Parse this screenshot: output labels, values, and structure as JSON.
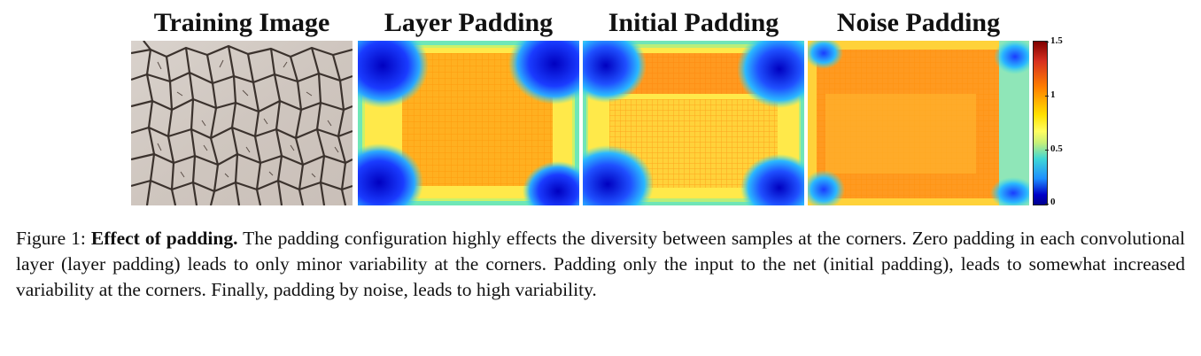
{
  "panels": [
    {
      "title": "Training Image"
    },
    {
      "title": "Layer Padding"
    },
    {
      "title": "Initial Padding"
    },
    {
      "title": "Noise Padding"
    }
  ],
  "colorbar": {
    "ticks": [
      "1.5",
      "1",
      "0.5",
      "0"
    ],
    "colors": [
      "#7f0000",
      "#d7301f",
      "#ff7f00",
      "#ffe100",
      "#fffe60",
      "#3fd6d6",
      "#1e8fff",
      "#0000c8"
    ]
  },
  "caption": {
    "label": "Figure 1:",
    "bold": "Effect of padding.",
    "text": "The padding configuration highly effects the diversity between samples at the corners. Zero padding in each convolutional layer (layer padding) leads to only minor variability at the corners. Padding only the input to the net (initial padding), leads to somewhat increased variability at the corners. Finally, padding by noise, leads to high variability."
  }
}
